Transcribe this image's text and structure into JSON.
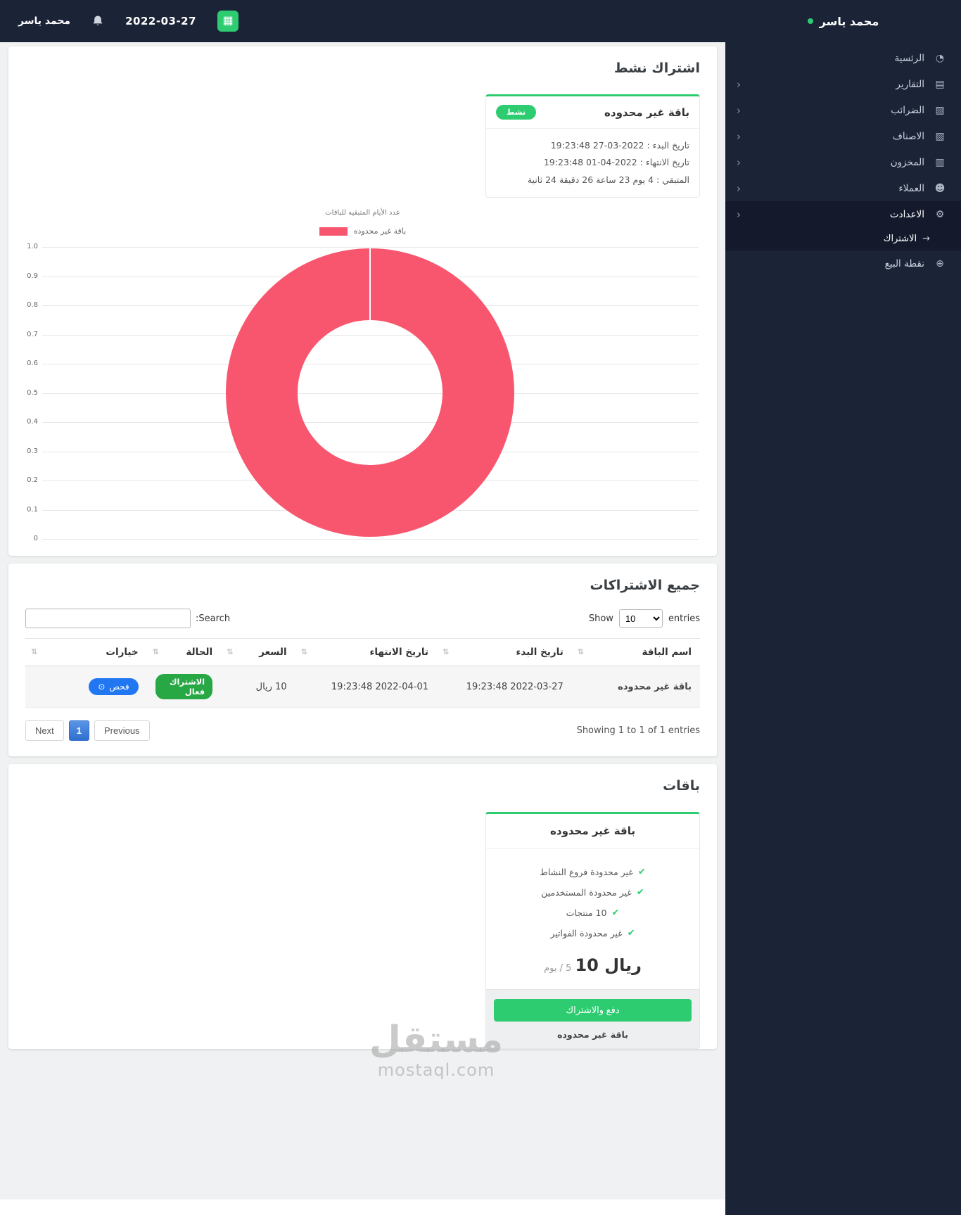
{
  "topbar": {
    "user_name": "محمد ياسر",
    "date": "2022-03-27"
  },
  "sidebar": {
    "user_name": "محمد ياسر",
    "items": [
      {
        "label": "الرئسية",
        "icon": "home-icon"
      },
      {
        "label": "التقارير",
        "icon": "reports-icon"
      },
      {
        "label": "الضرائب",
        "icon": "taxes-icon"
      },
      {
        "label": "الاصناف",
        "icon": "categories-icon"
      },
      {
        "label": "المخزون",
        "icon": "inventory-icon"
      },
      {
        "label": "العملاء",
        "icon": "customers-icon"
      },
      {
        "label": "الاعدادت",
        "icon": "settings-icon"
      },
      {
        "label": "نقطة البيع",
        "icon": "pos-icon"
      }
    ],
    "submenu_item": "الاشتراك"
  },
  "active_subscription": {
    "card_title": "اشتراك نشط",
    "package_name": "باقة غير محدوده",
    "status_badge": "نشط",
    "start_line": "تاريخ البدء : 2022-03-27 19:23:48",
    "end_line": "تاريخ الانتهاء : 2022-04-01 19:23:48",
    "remaining_line": "المتبقي : 4 يوم 23 ساعة 26 دقيقة 24 ثانية"
  },
  "chart_data": {
    "type": "pie",
    "variant": "doughnut",
    "title": "عدد الأيام المتبقيه للباقات",
    "series": [
      {
        "name": "باقة غير محدوده",
        "value": 1,
        "color": "#F8566E"
      }
    ],
    "legend_position": "top",
    "grid": true,
    "ylim": [
      0,
      1
    ],
    "y_ticks": [
      "1.0",
      "0.9",
      "0.8",
      "0.7",
      "0.6",
      "0.5",
      "0.4",
      "0.3",
      "0.2",
      "0.1",
      "0"
    ]
  },
  "subscriptions_table": {
    "card_title": "جميع الاشتراكات",
    "length_show": "Show",
    "length_entries": "entries",
    "length_value": "10",
    "search_label": "Search:",
    "columns": [
      "اسم الباقة",
      "تاريخ البدء",
      "تاريخ الانتهاء",
      "السعر",
      "الحالة",
      "خيارات"
    ],
    "rows": [
      {
        "name": "باقة غير محدوده",
        "start": "2022-03-27 19:23:48",
        "end": "2022-04-01 19:23:48",
        "price": "10 ريال",
        "status": "الاشتراك فعال",
        "action": "فحص"
      }
    ],
    "info": "Showing 1 to 1 of 1 entries",
    "prev_label": "Previous",
    "page_current": "1",
    "next_label": "Next"
  },
  "packages": {
    "card_title": "باقات",
    "name": "باقة غير محدوده",
    "features": [
      "غير محدودة فروع النشاط",
      "غير محدودة المستخدمين",
      "10 منتجات",
      "غير محدودة الفواتير"
    ],
    "price_amount": "ريال 10",
    "price_period": "5 / يوم",
    "subscribe_button": "دفع والاشتراك",
    "footer_name": "باقة غير محدوده"
  },
  "watermark": {
    "title": "مستقل",
    "domain": "mostaql.com"
  },
  "colors": {
    "sidebar_bg": "#1B2337",
    "accent_green": "#2ECC71",
    "chart_pink": "#F8566E",
    "status_green": "#28A745",
    "action_blue": "#2176F2",
    "paging_active_blue": "#2F6FD0"
  }
}
